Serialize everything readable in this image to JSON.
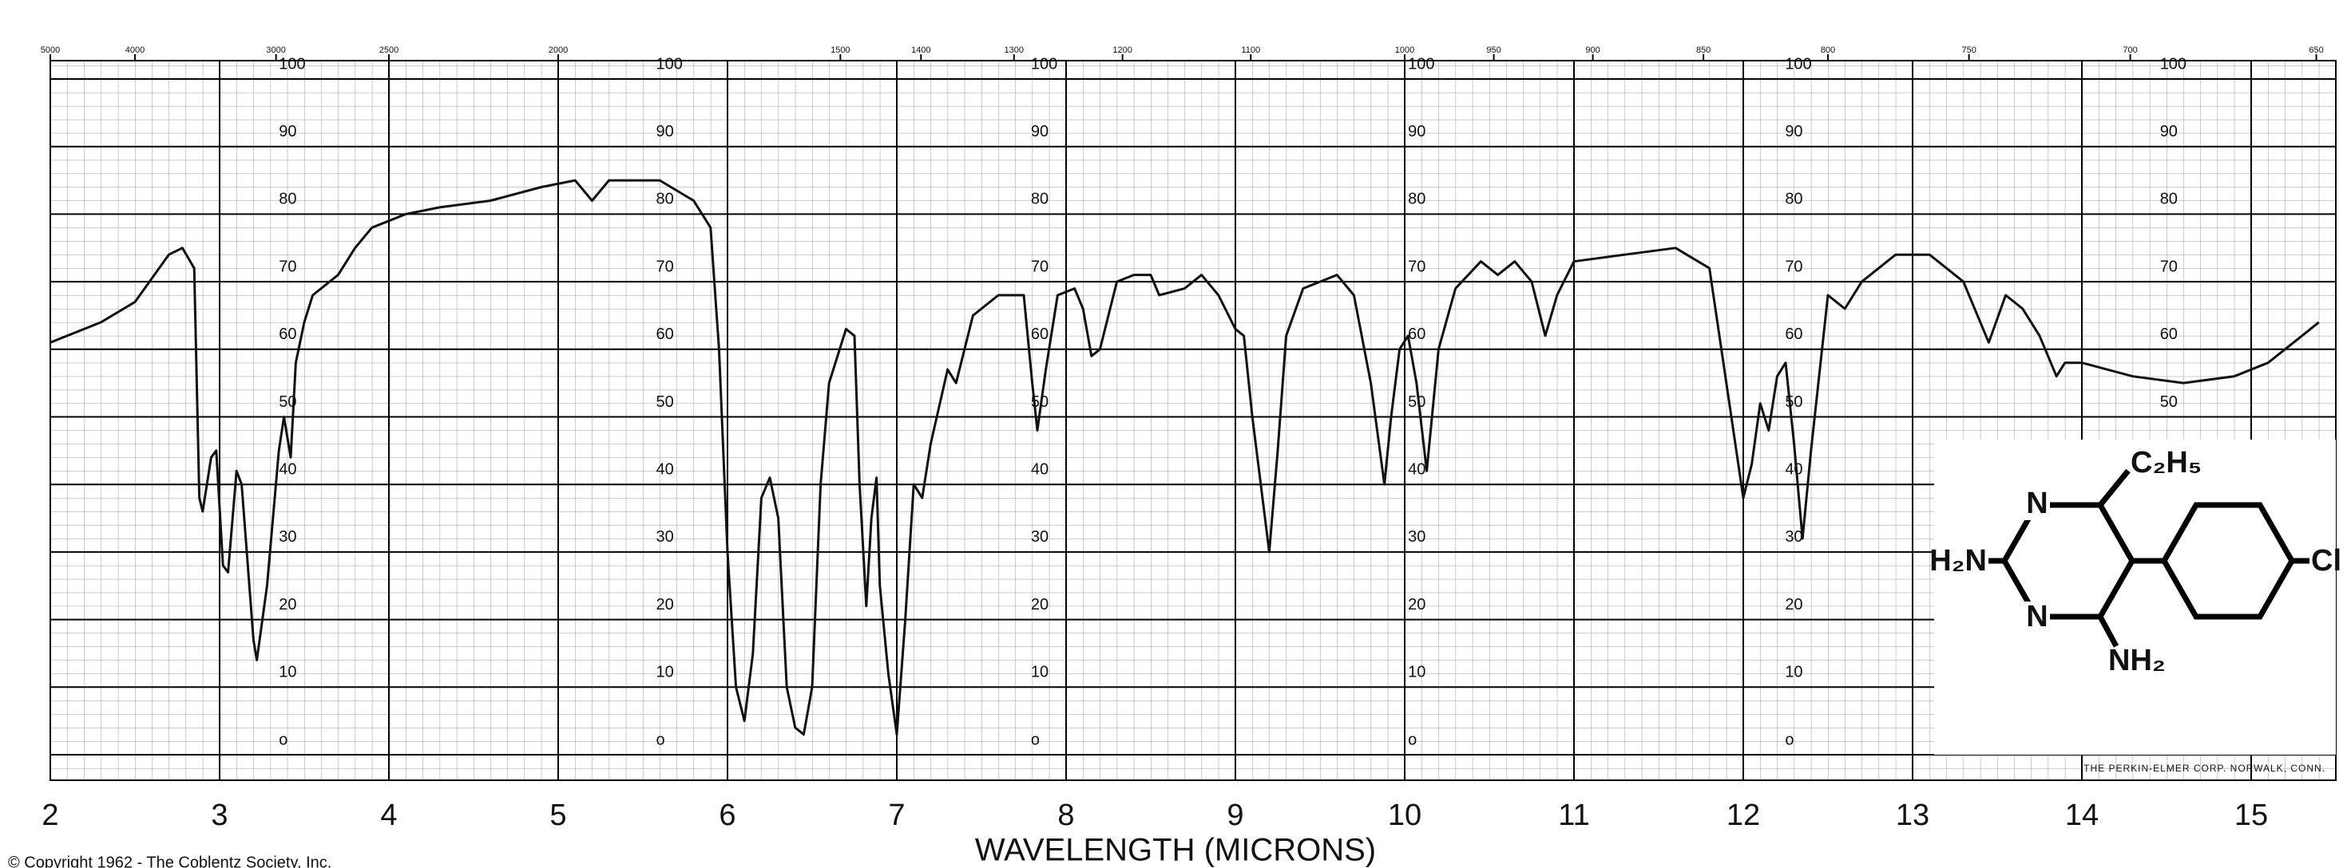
{
  "chart_data": {
    "type": "line",
    "x_label": "WAVELENGTH (MICRONS)",
    "x": [
      2.0,
      2.3,
      2.5,
      2.7,
      2.78,
      2.85,
      2.88,
      2.9,
      2.95,
      2.98,
      3.02,
      3.05,
      3.1,
      3.13,
      3.2,
      3.22,
      3.28,
      3.35,
      3.38,
      3.42,
      3.45,
      3.5,
      3.55,
      3.7,
      3.8,
      3.9,
      4.1,
      4.3,
      4.6,
      4.9,
      5.1,
      5.2,
      5.3,
      5.6,
      5.8,
      5.9,
      5.95,
      6.0,
      6.05,
      6.1,
      6.15,
      6.2,
      6.25,
      6.3,
      6.35,
      6.4,
      6.45,
      6.5,
      6.55,
      6.6,
      6.7,
      6.75,
      6.78,
      6.82,
      6.85,
      6.88,
      6.9,
      6.95,
      7.0,
      7.05,
      7.1,
      7.15,
      7.2,
      7.3,
      7.35,
      7.45,
      7.6,
      7.75,
      7.8,
      7.83,
      7.88,
      7.95,
      8.05,
      8.1,
      8.15,
      8.2,
      8.3,
      8.4,
      8.5,
      8.55,
      8.7,
      8.8,
      8.9,
      9.0,
      9.05,
      9.1,
      9.15,
      9.2,
      9.25,
      9.3,
      9.4,
      9.5,
      9.6,
      9.7,
      9.8,
      9.88,
      9.92,
      9.97,
      10.02,
      10.07,
      10.13,
      10.2,
      10.3,
      10.45,
      10.55,
      10.65,
      10.75,
      10.83,
      10.9,
      11.0,
      11.3,
      11.6,
      11.8,
      11.9,
      12.0,
      12.05,
      12.1,
      12.15,
      12.2,
      12.25,
      12.3,
      12.35,
      12.4,
      12.5,
      12.6,
      12.7,
      12.9,
      13.1,
      13.3,
      13.45,
      13.55,
      13.65,
      13.75,
      13.85,
      13.9,
      14.0,
      14.3,
      14.6,
      14.9,
      15.1,
      15.3,
      15.4
    ],
    "series": [
      {
        "color": "#111111",
        "values": [
          61,
          64,
          67,
          74,
          75,
          72,
          38,
          36,
          44,
          45,
          28,
          27,
          42,
          40,
          17,
          14,
          25,
          45,
          50,
          44,
          58,
          64,
          68,
          71,
          75,
          78,
          80,
          81,
          82,
          84,
          85,
          82,
          85,
          85,
          82,
          78,
          60,
          30,
          10,
          5,
          15,
          38,
          41,
          35,
          10,
          4,
          3,
          10,
          40,
          55,
          63,
          62,
          40,
          22,
          35,
          41,
          25,
          12,
          3,
          20,
          40,
          38,
          46,
          57,
          55,
          65,
          68,
          68,
          55,
          48,
          57,
          68,
          69,
          66,
          59,
          60,
          70,
          71,
          71,
          68,
          69,
          71,
          68,
          63,
          62,
          50,
          40,
          30,
          45,
          62,
          69,
          70,
          71,
          68,
          55,
          40,
          50,
          60,
          62,
          55,
          42,
          60,
          69,
          73,
          71,
          73,
          70,
          62,
          68,
          73,
          74,
          75,
          72,
          55,
          38,
          43,
          52,
          48,
          56,
          58,
          46,
          32,
          45,
          68,
          66,
          70,
          74,
          74,
          70,
          61,
          68,
          66,
          62,
          56,
          58,
          58,
          56,
          55,
          56,
          58,
          62,
          64
        ]
      }
    ],
    "xlim": [
      2,
      15.5
    ],
    "xticks": [
      2,
      3,
      4,
      5,
      6,
      7,
      8,
      9,
      10,
      11,
      12,
      13,
      14,
      15
    ],
    "ylim": [
      0,
      100
    ],
    "yticks": [
      {
        "value": 0,
        "label": "o"
      },
      10,
      20,
      30,
      40,
      50,
      60,
      70,
      80,
      90,
      100
    ],
    "x2ticks": [
      5000,
      4000,
      3000,
      2500,
      2000,
      1500,
      1400,
      1300,
      1200,
      1100,
      1000,
      950,
      900,
      850,
      800,
      750,
      700,
      650
    ],
    "grid": true
  },
  "footer": {
    "copyright": "© Copyright 1962 - The Coblentz Society, Inc.",
    "maker": "THE PERKIN-ELMER CORP. NORWALK, CONN."
  },
  "structure": {
    "labels": [
      "N",
      "N",
      "C₂H₅",
      "H₂N",
      "NH₂",
      "Cl"
    ]
  }
}
